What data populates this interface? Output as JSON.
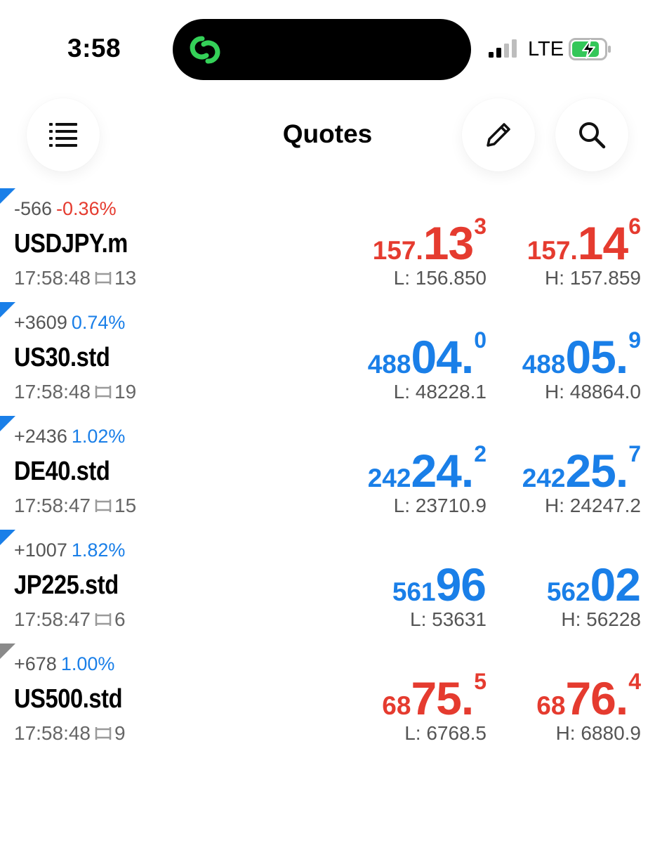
{
  "status_bar": {
    "time": "3:58",
    "network": "LTE",
    "signal_icon": "signal-bars-icon",
    "battery_icon": "battery-charging-icon",
    "island_icon": "link-rings-icon"
  },
  "header": {
    "title": "Quotes",
    "menu_icon": "list-icon",
    "edit_icon": "pencil-icon",
    "search_icon": "search-icon"
  },
  "colors": {
    "up": "#1a7fe8",
    "down": "#e53b2f",
    "island_link": "#34d158"
  },
  "quotes": [
    {
      "change": "-566",
      "percent": "-0.36%",
      "percent_dir": "down",
      "symbol": "USDJPY.m",
      "time": "17:58:48",
      "spread": "13",
      "price_dir": "down",
      "corner": "blue",
      "bid": {
        "small": "157.",
        "big": "13",
        "sup": "3"
      },
      "ask": {
        "small": "157.",
        "big": "14",
        "sup": "6"
      },
      "low": "L: 156.850",
      "high": "H: 157.859"
    },
    {
      "change": "+3609",
      "percent": "0.74%",
      "percent_dir": "up",
      "symbol": "US30.std",
      "time": "17:58:48",
      "spread": "19",
      "price_dir": "up",
      "corner": "blue",
      "bid": {
        "small": "488",
        "big": "04.",
        "sup": "0"
      },
      "ask": {
        "small": "488",
        "big": "05.",
        "sup": "9"
      },
      "low": "L: 48228.1",
      "high": "H: 48864.0"
    },
    {
      "change": "+2436",
      "percent": "1.02%",
      "percent_dir": "up",
      "symbol": "DE40.std",
      "time": "17:58:47",
      "spread": "15",
      "price_dir": "up",
      "corner": "blue",
      "bid": {
        "small": "242",
        "big": "24.",
        "sup": "2"
      },
      "ask": {
        "small": "242",
        "big": "25.",
        "sup": "7"
      },
      "low": "L: 23710.9",
      "high": "H: 24247.2"
    },
    {
      "change": "+1007",
      "percent": "1.82%",
      "percent_dir": "up",
      "symbol": "JP225.std",
      "time": "17:58:47",
      "spread": "6",
      "price_dir": "up",
      "corner": "blue",
      "bid": {
        "small": "561",
        "big": "96",
        "sup": ""
      },
      "ask": {
        "small": "562",
        "big": "02",
        "sup": ""
      },
      "low": "L: 53631",
      "high": "H: 56228"
    },
    {
      "change": "+678",
      "percent": "1.00%",
      "percent_dir": "up",
      "symbol": "US500.std",
      "time": "17:58:48",
      "spread": "9",
      "price_dir": "down",
      "corner": "gray",
      "bid": {
        "small": "68",
        "big": "75.",
        "sup": "5"
      },
      "ask": {
        "small": "68",
        "big": "76.",
        "sup": "4"
      },
      "low": "L: 6768.5",
      "high": "H: 6880.9"
    }
  ]
}
